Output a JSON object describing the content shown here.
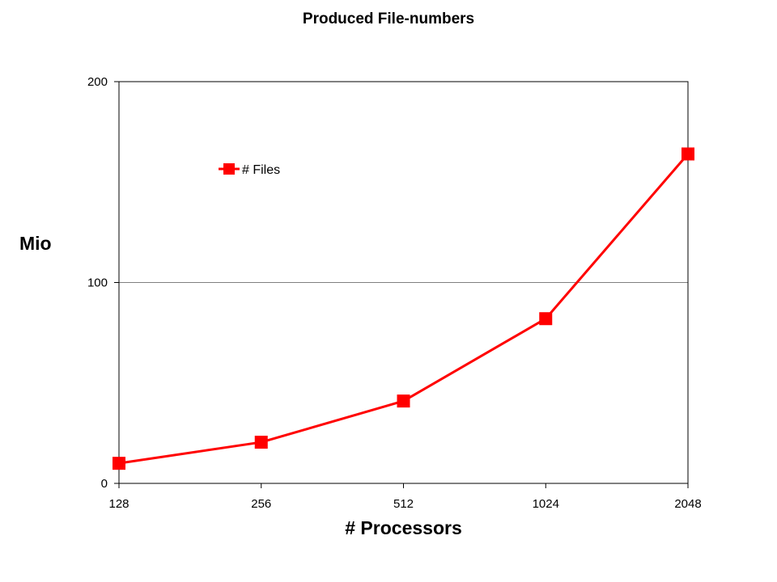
{
  "chart_data": {
    "type": "line",
    "title": "Produced File-numbers",
    "xlabel": "# Processors",
    "ylabel": "Mio",
    "categories": [
      "128",
      "256",
      "512",
      "1024",
      "2048"
    ],
    "series": [
      {
        "name": "# Files",
        "values": [
          10,
          20.5,
          41,
          82,
          164
        ],
        "color": "#ff0000",
        "marker": "square"
      }
    ],
    "ylim": [
      0,
      200
    ],
    "yticks": [
      0,
      100,
      200
    ],
    "ytick_labels": [
      "0",
      "100",
      "200"
    ],
    "grid": "horizontal major gridlines",
    "legend_position": "upper-left inside plot"
  }
}
